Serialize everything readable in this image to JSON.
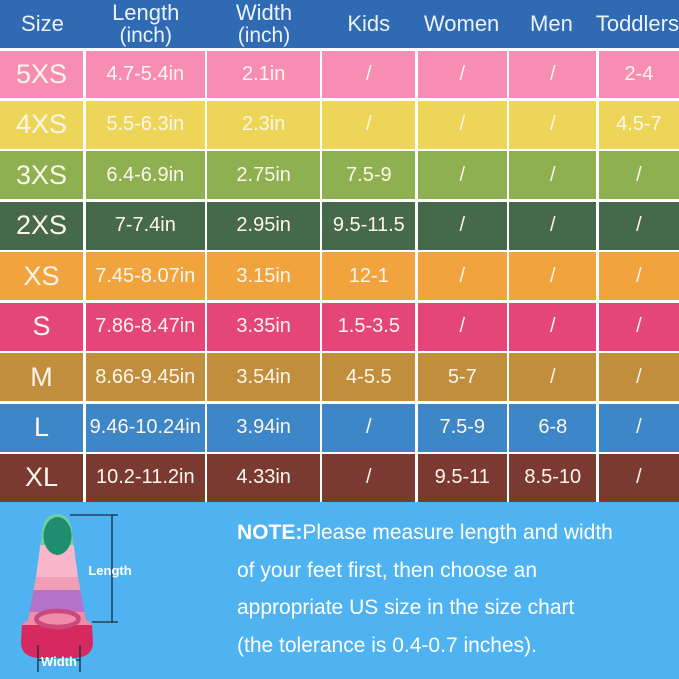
{
  "chart_data": {
    "type": "table",
    "title": "Swim fin size chart",
    "columns": [
      {
        "label": "Size",
        "sub": ""
      },
      {
        "label": "Length",
        "sub": "(inch)"
      },
      {
        "label": "Width",
        "sub": "(inch)"
      },
      {
        "label": "Kids",
        "sub": ""
      },
      {
        "label": "Women",
        "sub": ""
      },
      {
        "label": "Men",
        "sub": ""
      },
      {
        "label": "Toddlers",
        "sub": ""
      }
    ],
    "rows": [
      {
        "color": "#F78DB2",
        "cells": [
          "5XS",
          "4.7-5.4in",
          "2.1in",
          "/",
          "/",
          "/",
          "2-4"
        ]
      },
      {
        "color": "#EDD558",
        "cells": [
          "4XS",
          "5.5-6.3in",
          "2.3in",
          "/",
          "/",
          "/",
          "4.5-7"
        ]
      },
      {
        "color": "#8FB051",
        "cells": [
          "3XS",
          "6.4-6.9in",
          "2.75in",
          "7.5-9",
          "/",
          "/",
          "/"
        ]
      },
      {
        "color": "#46684B",
        "cells": [
          "2XS",
          "7-7.4in",
          "2.95in",
          "9.5-11.5",
          "/",
          "/",
          "/"
        ]
      },
      {
        "color": "#F1A33E",
        "cells": [
          "XS",
          "7.45-8.07in",
          "3.15in",
          "12-1",
          "/",
          "/",
          "/"
        ]
      },
      {
        "color": "#E44679",
        "cells": [
          "S",
          "7.86-8.47in",
          "3.35in",
          "1.5-3.5",
          "/",
          "/",
          "/"
        ]
      },
      {
        "color": "#C18E3D",
        "cells": [
          "M",
          "8.66-9.45in",
          "3.54in",
          "4-5.5",
          "5-7",
          "/",
          "/"
        ]
      },
      {
        "color": "#3D86C8",
        "cells": [
          "L",
          "9.46-10.24in",
          "3.94in",
          "/",
          "7.5-9",
          "6-8",
          "/"
        ]
      },
      {
        "color": "#7A3A31",
        "cells": [
          "XL",
          "10.2-11.2in",
          "4.33in",
          "/",
          "9.5-11",
          "8.5-10",
          "/"
        ]
      }
    ]
  },
  "note": {
    "label": "NOTE:",
    "lines": [
      "Please measure length and width",
      "of your feet first, then choose an",
      "appropriate US size in the size chart",
      "(the tolerance is 0.4-0.7 inches)."
    ]
  },
  "diagram": {
    "length_label": "Length",
    "width_label": "Width",
    "colors": {
      "tip": "#6FCDA8",
      "tip_inner": "#1F8E6F",
      "band_light_pink": "#F8B7CB",
      "band_salmon": "#F29EB6",
      "band_purple": "#B672C6",
      "band_pink": "#F08CA8",
      "base": "#D62960",
      "opening_rim": "#C9497A",
      "measure_line": "#1B2A3A"
    }
  },
  "colors": {
    "header_bg": "#2F6AB3",
    "header_text": "#EAF2FB",
    "cell_text": "#FDF6EC",
    "grid_line": "#FFFFFF",
    "bottom_bg": "#4FB3F2",
    "note_text": "#FFFFFF"
  }
}
